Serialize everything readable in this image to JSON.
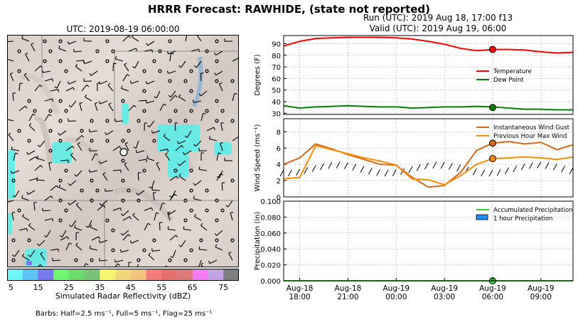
{
  "header": {
    "title": "HRRR Forecast: RAWHIDE, (state not reported)",
    "run": "Run (UTC): 2019 Aug 18, 17:00 f13",
    "valid": "Valid (UTC): 2019 Aug 19, 06:00"
  },
  "map": {
    "title": "UTC: 2019-08-19 06:00:00",
    "colorbar_label": "Simulated Radar Reflectivity (dBZ)",
    "colorbar_ticks": [
      "5",
      "15",
      "25",
      "35",
      "45",
      "55",
      "65",
      "75"
    ],
    "colorbar_colors": [
      "#6ff5f5",
      "#5ec3f5",
      "#7a7af0",
      "#6ff56f",
      "#6ddc6d",
      "#76c576",
      "#f5f56f",
      "#f0d77a",
      "#f5c37a",
      "#f57a7a",
      "#e66f6f",
      "#dc7a7a",
      "#f57af5",
      "#c3a3e6",
      "#7f7f7f"
    ],
    "barb_note": "Barbs: Half=2.5 ms⁻¹, Full=5 ms⁻¹, Flag=25 ms⁻¹"
  },
  "chart_data": [
    {
      "type": "line",
      "ylabel": "Degrees (F)",
      "ylim": [
        29,
        97
      ],
      "yticks": [
        30,
        40,
        50,
        60,
        70,
        80,
        90
      ],
      "grid": true,
      "legend_position": "right",
      "series": [
        {
          "name": "Temperature",
          "color": "#ff0000",
          "x": [
            17,
            18,
            19,
            20,
            21,
            22,
            23,
            24,
            25,
            26,
            27,
            28,
            29,
            30,
            31,
            32,
            33,
            34,
            35
          ],
          "y": [
            88,
            92,
            94.5,
            95,
            95.5,
            95.5,
            95.5,
            95,
            94,
            92,
            89.5,
            86,
            84,
            85,
            85,
            84.5,
            83,
            82,
            82.5
          ]
        },
        {
          "name": "Dew Point",
          "color": "#008000",
          "x": [
            17,
            18,
            19,
            20,
            21,
            22,
            23,
            24,
            25,
            26,
            27,
            28,
            29,
            30,
            31,
            32,
            33,
            34,
            35
          ],
          "y": [
            36.5,
            34.5,
            35.5,
            36,
            36.5,
            36,
            35.5,
            35.5,
            34.5,
            35,
            35.5,
            35.5,
            36,
            35.5,
            34.5,
            33.5,
            33.5,
            33,
            33
          ]
        }
      ],
      "marker": {
        "x": 30,
        "values": [
          85,
          35
        ]
      }
    },
    {
      "type": "line",
      "ylabel": "Wind Speed (ms⁻¹)",
      "ylim": [
        0,
        9.6
      ],
      "yticks": [
        0,
        2,
        4,
        6,
        8
      ],
      "grid": true,
      "legend_position": "top-right",
      "series": [
        {
          "name": "Instantaneous Wind Gust",
          "color": "#d2691e",
          "x": [
            17,
            18,
            19,
            20,
            21,
            22,
            23,
            24,
            25,
            26,
            27,
            28,
            29,
            30,
            31,
            32,
            33,
            34,
            35
          ],
          "y": [
            4,
            4.8,
            6.5,
            5.9,
            5.2,
            4.6,
            4.0,
            3.9,
            2.4,
            1.2,
            1.4,
            3.0,
            5.7,
            6.6,
            6.8,
            6.5,
            6.7,
            5.8,
            6.4
          ]
        },
        {
          "name": "Previous Hour Max Wind",
          "color": "#ff8c00",
          "x": [
            17,
            18,
            19,
            20,
            21,
            22,
            23,
            24,
            25,
            26,
            27,
            28,
            29,
            30,
            31,
            32,
            33,
            34,
            35
          ],
          "y": [
            2.2,
            2.4,
            6.3,
            5.8,
            5.3,
            4.8,
            4.4,
            3.9,
            2.2,
            2.1,
            1.5,
            2.6,
            4.0,
            4.7,
            4.8,
            4.9,
            4.8,
            4.6,
            4.9
          ]
        }
      ],
      "marker": {
        "x": 30,
        "values": [
          6.6,
          4.7
        ]
      }
    },
    {
      "type": "line",
      "ylabel": "Precipitation (in)",
      "ylim": [
        0,
        0.1
      ],
      "yticks": [
        0.0,
        0.02,
        0.04,
        0.06,
        0.08,
        0.1
      ],
      "ytick_labels": [
        "0.000",
        "0.020",
        "0.040",
        "0.060",
        "0.080",
        "0.100"
      ],
      "grid": true,
      "legend_position": "top-right",
      "series": [
        {
          "name": "Accumulated Precipitation",
          "color": "#32cd32",
          "x": [
            17,
            35
          ],
          "y": [
            0,
            0
          ]
        },
        {
          "name": "1 hour Precipitation",
          "color": "#1e90ff",
          "kind": "bar",
          "x": [],
          "y": []
        }
      ],
      "marker": {
        "x": 30,
        "values": [
          0
        ]
      },
      "xticks": [
        {
          "x": 18,
          "label": [
            "Aug-18",
            "18:00"
          ]
        },
        {
          "x": 21,
          "label": [
            "Aug-18",
            "21:00"
          ]
        },
        {
          "x": 24,
          "label": [
            "Aug-19",
            "00:00"
          ]
        },
        {
          "x": 27,
          "label": [
            "Aug-19",
            "03:00"
          ]
        },
        {
          "x": 30,
          "label": [
            "Aug-19",
            "06:00"
          ]
        },
        {
          "x": 33,
          "label": [
            "Aug-19",
            "09:00"
          ]
        }
      ],
      "xlim": [
        17,
        35
      ]
    }
  ]
}
